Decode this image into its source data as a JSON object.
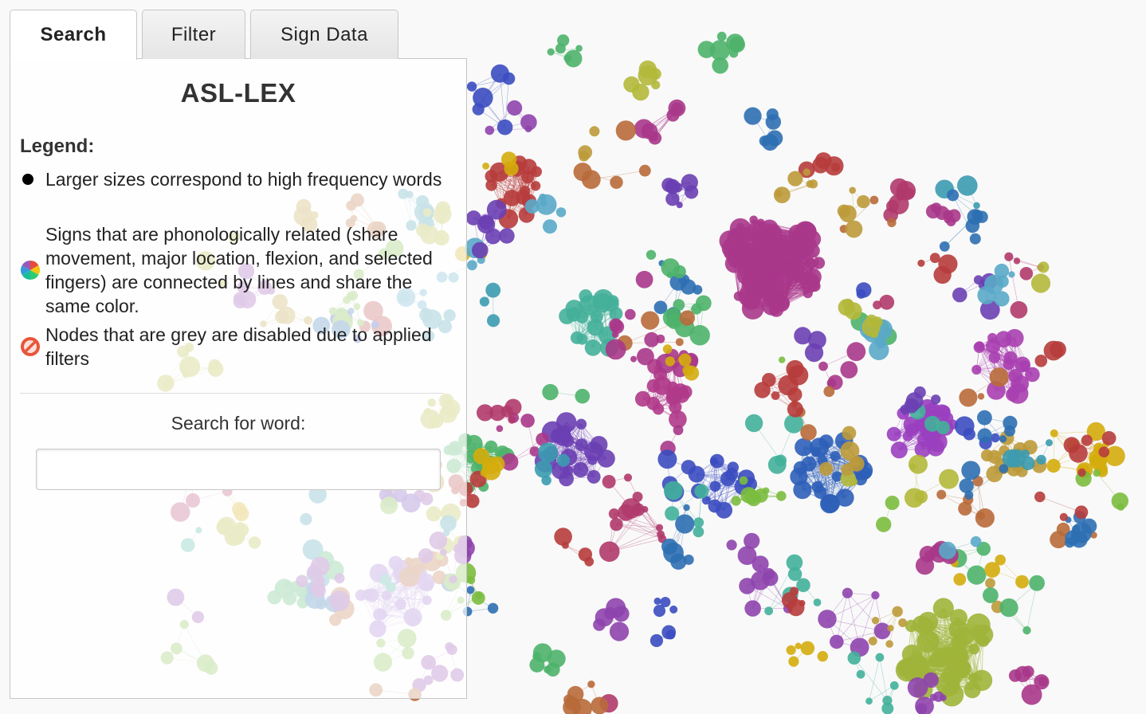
{
  "tabs": [
    {
      "label": "Search",
      "active": true
    },
    {
      "label": "Filter",
      "active": false
    },
    {
      "label": "Sign Data",
      "active": false
    }
  ],
  "panel": {
    "title": "ASL-LEX",
    "legend_heading": "Legend:",
    "legend_items": [
      {
        "icon": "black-dot-icon",
        "text": "Larger sizes correspond to high frequency words"
      },
      {
        "icon": "color-wheel-icon",
        "text": "Signs that are phonologically related (share movement, major location, flexion, and selected fingers) are connected by lines and share the same color."
      },
      {
        "icon": "prohibited-icon",
        "text": "Nodes that are grey are disabled due to applied filters"
      }
    ],
    "search_label": "Search for word:",
    "search_placeholder": "",
    "search_value": ""
  },
  "graph": {
    "palette": [
      "#a9378a",
      "#6a3fb3",
      "#3b4cc0",
      "#2e6fb3",
      "#3c9bb0",
      "#43b09a",
      "#4eb36a",
      "#7bbd3f",
      "#b2b83a",
      "#bd9a3a",
      "#b86a3a",
      "#b73c3c",
      "#b03a6b",
      "#5aa8c8",
      "#8e44ad",
      "#d4ac0d"
    ]
  }
}
